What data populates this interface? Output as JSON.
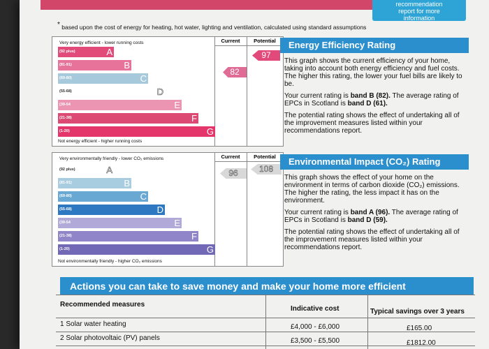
{
  "header": {
    "info_lines": [
      "recommendation",
      "report for more",
      "information"
    ]
  },
  "note": "based upon the cost of energy for heating, hot water, lighting and ventilation, calculated using standard assumptions",
  "energy_chart": {
    "top_caption": "Very energy efficient - lower running costs",
    "bottom_caption": "Not energy efficient - higher running costs",
    "col_current": "Current",
    "col_potential": "Potential",
    "current": "82",
    "potential": "97",
    "bands": [
      {
        "range": "(92 plus)",
        "letter": "A",
        "color": "#e24a7a",
        "fraction": 0.3
      },
      {
        "range": "(81-91)",
        "letter": "B",
        "color": "#e8739a",
        "fraction": 0.39
      },
      {
        "range": "(69-80)",
        "letter": "C",
        "color": "#a6c9dc",
        "fraction": 0.48
      },
      {
        "range": "(55-68)",
        "letter": "D",
        "color": "#ffffff",
        "fraction": 0.57
      },
      {
        "range": "(39-54",
        "letter": "E",
        "color": "#ec95b3",
        "fraction": 0.66
      },
      {
        "range": "(21-38)",
        "letter": "F",
        "color": "#dc4a74",
        "fraction": 0.75
      },
      {
        "range": "(1-20)",
        "letter": "G",
        "color": "#e4366a",
        "fraction": 0.84
      }
    ]
  },
  "env_chart": {
    "top_caption": "Very environmentally friendly - lower CO₂ emissions",
    "bottom_caption": "Not environmentally friendly - higher CO₂ emissions",
    "col_current": "Current",
    "col_potential": "Potential",
    "current": "96",
    "potential": "108",
    "bands": [
      {
        "range": "(92 plus)",
        "letter": "A",
        "color": "#ffffff",
        "fraction": 0.3
      },
      {
        "range": "(81-91)",
        "letter": "B",
        "color": "#a9cde0",
        "fraction": 0.39
      },
      {
        "range": "(69-80)",
        "letter": "C",
        "color": "#6aa8d4",
        "fraction": 0.48
      },
      {
        "range": "(55-68)",
        "letter": "D",
        "color": "#2e78c2",
        "fraction": 0.57
      },
      {
        "range": "(39-54",
        "letter": "E",
        "color": "#b1a9d8",
        "fraction": 0.66
      },
      {
        "range": "(21-38)",
        "letter": "F",
        "color": "#8f85c8",
        "fraction": 0.75
      },
      {
        "range": "(1-20)",
        "letter": "G",
        "color": "#7168b6",
        "fraction": 0.84
      }
    ]
  },
  "eer_panel": {
    "title": "Energy Efficiency Rating",
    "p1": "This graph shows the current efficiency of your home, taking into account both energy efficiency and fuel costs. The higher this rating, the lower your fuel bills are likely to be.",
    "p2_pre": "Your current rating is ",
    "p2_bold1": "band B (82).",
    "p2_mid": " The average rating of EPCs in Scotland is ",
    "p2_bold2": "band D (61).",
    "p3": "The potential rating shows the effect of undertaking all of the improvement measures listed within your recommendations report."
  },
  "eir_panel": {
    "title": "Environmental Impact (CO₂) Rating",
    "p1": "This graph shows the effect of your home on the environment in terms of carbon dioxide (CO₂) emissions. The higher the rating, the less impact it has on the environment.",
    "p2_pre": "Your current rating is ",
    "p2_bold1": "band A (96).",
    "p2_mid": " The average rating of EPCs in Scotland is ",
    "p2_bold2": "band D (59).",
    "p3": "The potential rating shows the effect of undertaking all of the improvement measures listed within your recommendations report."
  },
  "actions": {
    "title": "Actions you can take to save money and make your home more efficient",
    "col_measures": "Recommended measures",
    "col_cost": "Indicative cost",
    "col_savings": "Typical savings over 3 years",
    "rows": [
      {
        "measure": "1 Solar water heating",
        "cost": "£4,000 - £6,000",
        "savings": "£165.00"
      },
      {
        "measure": "2 Solar photovoltaic (PV) panels",
        "cost": "£3,500 - £5,500",
        "savings": "£1812.00"
      }
    ]
  }
}
